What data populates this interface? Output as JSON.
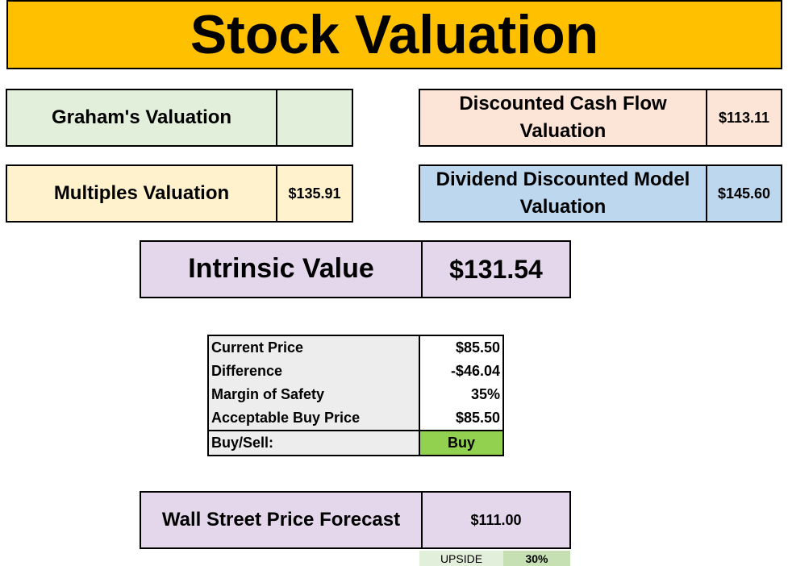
{
  "title": "Stock Valuation",
  "graham": {
    "label": "Graham's Valuation",
    "value": ""
  },
  "dcf": {
    "label": "Discounted Cash Flow Valuation",
    "value": "$113.11"
  },
  "multiples": {
    "label": "Multiples Valuation",
    "value": "$135.91"
  },
  "ddm": {
    "label": "Dividend Discounted Model Valuation",
    "value": "$145.60"
  },
  "intrinsic": {
    "label": "Intrinsic Value",
    "value": "$131.54"
  },
  "table": {
    "rows": [
      {
        "label": "Current Price",
        "value": "$85.50"
      },
      {
        "label": "Difference",
        "value": "-$46.04"
      },
      {
        "label": "Margin of Safety",
        "value": "35%"
      },
      {
        "label": "Acceptable Buy Price",
        "value": "$85.50"
      }
    ],
    "decision": {
      "label": "Buy/Sell:",
      "value": "Buy"
    }
  },
  "forecast": {
    "label": "Wall Street Price Forecast",
    "value": "$111.00"
  },
  "upside": {
    "label": "UPSIDE",
    "value": "30%"
  },
  "colors": {
    "title_bg": "#ffc000",
    "graham_bg": "#e2efda",
    "dcf_bg": "#fce4d6",
    "multiples_bg": "#fff2cc",
    "ddm_bg": "#bdd7ee",
    "intrinsic_bg": "#e4d7ec",
    "buy_bg": "#92d050",
    "upside_bg": "#c6e0b4"
  }
}
